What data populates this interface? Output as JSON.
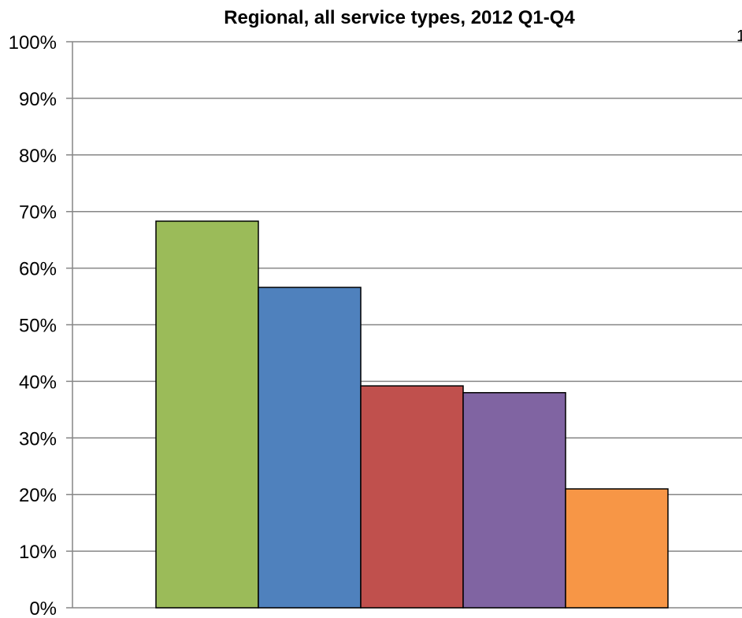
{
  "chart_data": {
    "type": "bar",
    "title": "Regional, all service types, 2012 Q1-Q4",
    "corner_label": "1",
    "xlabel": "",
    "ylabel": "",
    "ylim": [
      0,
      100
    ],
    "yticks": [
      "0%",
      "10%",
      "20%",
      "30%",
      "40%",
      "50%",
      "60%",
      "70%",
      "80%",
      "90%",
      "100%"
    ],
    "grid": true,
    "legend": "none",
    "bars": [
      {
        "value": 68.3,
        "color": "#9BBB59"
      },
      {
        "value": 56.6,
        "color": "#4F81BD"
      },
      {
        "value": 39.2,
        "color": "#C0504D"
      },
      {
        "value": 38.0,
        "color": "#8064A2"
      },
      {
        "value": 21.0,
        "color": "#F79646"
      }
    ]
  }
}
